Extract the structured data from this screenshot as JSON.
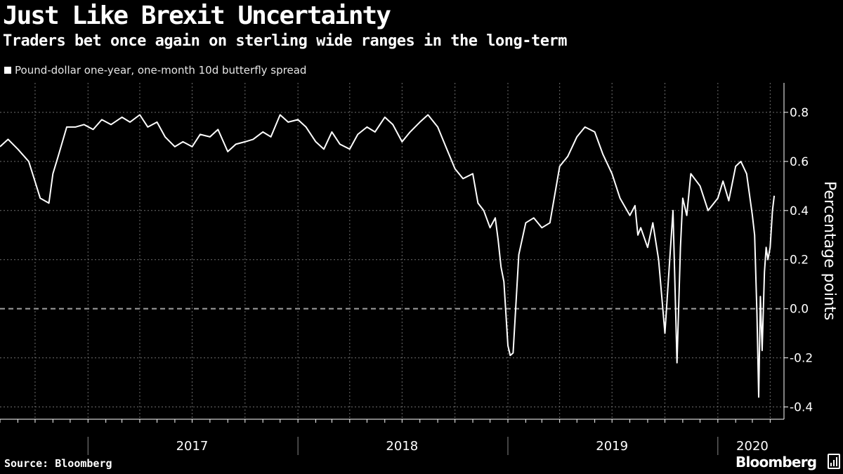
{
  "header": {
    "title": "Just Like Brexit Uncertainty",
    "subtitle": "Traders bet once again on sterling wide ranges in the long-term"
  },
  "footer": {
    "source": "Source: Bloomberg",
    "logo_text": "Bloomberg"
  },
  "colors": {
    "background": "#000000",
    "line": "#ffffff",
    "grid": "#6e6e6e",
    "zero_line": "#a0a0a0"
  },
  "chart_data": {
    "type": "line",
    "title": "Just Like Brexit Uncertainty",
    "subtitle": "Traders bet once again on sterling wide ranges in the long-term",
    "ylabel": "Percentage points",
    "ylim": [
      -0.45,
      0.92
    ],
    "yticks": [
      -0.4,
      -0.2,
      0.0,
      0.2,
      0.4,
      0.6,
      0.8
    ],
    "ytick_labels": [
      "-0.4",
      "-0.2",
      "0.0",
      "0.2",
      "0.4",
      "0.6",
      "0.8"
    ],
    "xlim": [
      "2016-08-01",
      "2020-04-25"
    ],
    "xtick_labels": [
      "2017",
      "2018",
      "2019",
      "2020"
    ],
    "grid": true,
    "zero_line": "dashed",
    "legend_position": "top-left",
    "series": [
      {
        "name": "Pound-dollar one-year, one-month 10d butterfly spread",
        "x": [
          "2016-08-01",
          "2016-08-15",
          "2016-09-01",
          "2016-09-20",
          "2016-10-10",
          "2016-10-25",
          "2016-11-01",
          "2016-11-10",
          "2016-11-25",
          "2016-12-10",
          "2016-12-25",
          "2017-01-10",
          "2017-01-25",
          "2017-02-10",
          "2017-03-01",
          "2017-03-15",
          "2017-04-01",
          "2017-04-15",
          "2017-05-01",
          "2017-05-15",
          "2017-06-01",
          "2017-06-15",
          "2017-07-01",
          "2017-07-15",
          "2017-08-01",
          "2017-08-15",
          "2017-09-01",
          "2017-09-15",
          "2017-10-01",
          "2017-10-15",
          "2017-11-01",
          "2017-11-15",
          "2017-12-01",
          "2017-12-15",
          "2018-01-01",
          "2018-01-15",
          "2018-02-01",
          "2018-02-15",
          "2018-03-01",
          "2018-03-15",
          "2018-04-01",
          "2018-04-15",
          "2018-05-01",
          "2018-05-15",
          "2018-06-01",
          "2018-06-15",
          "2018-07-01",
          "2018-07-15",
          "2018-08-01",
          "2018-08-15",
          "2018-09-01",
          "2018-09-15",
          "2018-10-01",
          "2018-10-15",
          "2018-11-01",
          "2018-11-10",
          "2018-11-20",
          "2018-12-01",
          "2018-12-10",
          "2018-12-15",
          "2018-12-20",
          "2018-12-25",
          "2019-01-01",
          "2019-01-05",
          "2019-01-10",
          "2019-01-20",
          "2019-02-01",
          "2019-02-15",
          "2019-03-01",
          "2019-03-15",
          "2019-04-01",
          "2019-04-15",
          "2019-05-01",
          "2019-05-15",
          "2019-06-01",
          "2019-06-15",
          "2019-07-01",
          "2019-07-15",
          "2019-08-01",
          "2019-08-10",
          "2019-08-15",
          "2019-08-20",
          "2019-09-01",
          "2019-09-10",
          "2019-09-20",
          "2019-10-01",
          "2019-10-08",
          "2019-10-15",
          "2019-10-22",
          "2019-10-28",
          "2019-11-01",
          "2019-11-08",
          "2019-11-15",
          "2019-12-01",
          "2019-12-15",
          "2020-01-01",
          "2020-01-10",
          "2020-01-20",
          "2020-02-01",
          "2020-02-10",
          "2020-02-20",
          "2020-03-01",
          "2020-03-05",
          "2020-03-09",
          "2020-03-12",
          "2020-03-15",
          "2020-03-18",
          "2020-03-22",
          "2020-03-25",
          "2020-03-28",
          "2020-04-01",
          "2020-04-05",
          "2020-04-08"
        ],
        "y": [
          0.66,
          0.69,
          0.65,
          0.6,
          0.45,
          0.43,
          0.55,
          0.62,
          0.74,
          0.74,
          0.75,
          0.73,
          0.77,
          0.75,
          0.78,
          0.76,
          0.79,
          0.74,
          0.76,
          0.7,
          0.66,
          0.68,
          0.66,
          0.71,
          0.7,
          0.73,
          0.64,
          0.67,
          0.68,
          0.69,
          0.72,
          0.7,
          0.79,
          0.76,
          0.77,
          0.74,
          0.68,
          0.65,
          0.72,
          0.67,
          0.65,
          0.71,
          0.74,
          0.72,
          0.78,
          0.75,
          0.68,
          0.72,
          0.76,
          0.79,
          0.74,
          0.66,
          0.57,
          0.53,
          0.55,
          0.43,
          0.4,
          0.33,
          0.37,
          0.28,
          0.17,
          0.11,
          -0.15,
          -0.19,
          -0.18,
          0.22,
          0.35,
          0.37,
          0.33,
          0.35,
          0.58,
          0.62,
          0.7,
          0.74,
          0.72,
          0.63,
          0.55,
          0.45,
          0.38,
          0.42,
          0.3,
          0.33,
          0.25,
          0.35,
          0.2,
          -0.1,
          0.15,
          0.4,
          -0.22,
          0.25,
          0.45,
          0.38,
          0.55,
          0.5,
          0.4,
          0.45,
          0.52,
          0.44,
          0.58,
          0.6,
          0.55,
          0.38,
          0.3,
          -0.02,
          -0.36,
          0.05,
          -0.17,
          0.15,
          0.25,
          0.2,
          0.25,
          0.4,
          0.46
        ]
      }
    ]
  }
}
